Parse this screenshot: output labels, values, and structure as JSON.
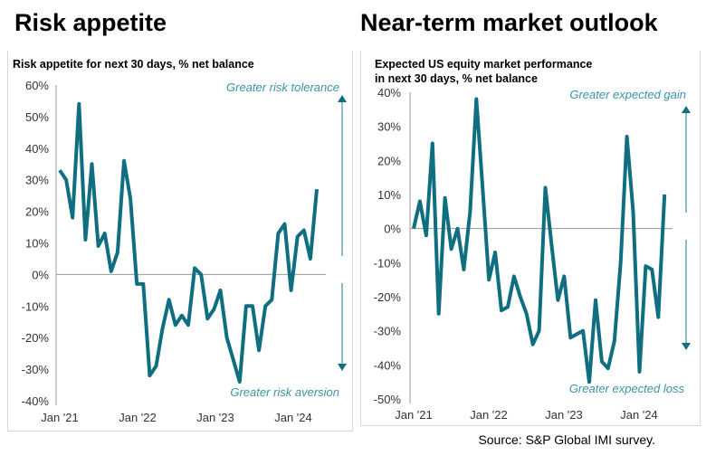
{
  "source": "Source: S&P Global IMI survey.",
  "colors": {
    "line": "#0f6e80",
    "annot": "#3a93a6",
    "axis": "#999999"
  },
  "chart_data": [
    {
      "type": "line",
      "heading": "Risk appetite",
      "title": "Risk appetite for next 30 days, % net balance",
      "xticks": [
        "Jan '21",
        "Jan '22",
        "Jan '23",
        "Jan '24"
      ],
      "yticks": [
        "60%",
        "50%",
        "40%",
        "30%",
        "20%",
        "10%",
        "0%",
        "-10%",
        "-20%",
        "-30%",
        "-40%"
      ],
      "ylim": [
        -40,
        60
      ],
      "x_start": "Jan 2021",
      "frequency": "monthly",
      "annot_top": "Greater risk tolerance",
      "annot_bottom": "Greater risk aversion",
      "values": [
        33,
        30,
        18,
        54,
        11,
        35,
        9,
        13,
        1,
        7,
        36,
        24,
        -3,
        -3,
        -32,
        -29,
        -17,
        -8,
        -16,
        -13,
        -16,
        2,
        0,
        -14,
        -11,
        -5,
        -20,
        -27,
        -34,
        -10,
        -10,
        -24,
        -10,
        -8,
        13,
        16,
        -5,
        12,
        14,
        5,
        27
      ]
    },
    {
      "type": "line",
      "heading": "Near-term market outlook",
      "title": "Expected US equity market performance in next 30 days, % net balance",
      "title_lines": [
        "Expected US equity market performance",
        "in next 30 days, % net balance"
      ],
      "xticks": [
        "Jan '21",
        "Jan '22",
        "Jan '23",
        "Jan '24"
      ],
      "yticks": [
        "40%",
        "30%",
        "20%",
        "10%",
        "0%",
        "-10%",
        "-20%",
        "-30%",
        "-40%",
        "-50%"
      ],
      "ylim": [
        -50,
        40
      ],
      "x_start": "Jan 2021",
      "frequency": "monthly",
      "annot_top": "Greater expected gain",
      "annot_bottom": "Greater  expected loss",
      "values": [
        0,
        8,
        -2,
        25,
        -25,
        9,
        -6,
        0,
        -12,
        5,
        38,
        12,
        -15,
        -7,
        -24,
        -23,
        -14,
        -20,
        -25,
        -34,
        -30,
        12,
        -5,
        -21,
        -14,
        -32,
        -31,
        -30,
        -45,
        -21,
        -39,
        -41,
        -33,
        -10,
        27,
        5,
        -42,
        -11,
        -12,
        -26,
        10
      ]
    }
  ]
}
